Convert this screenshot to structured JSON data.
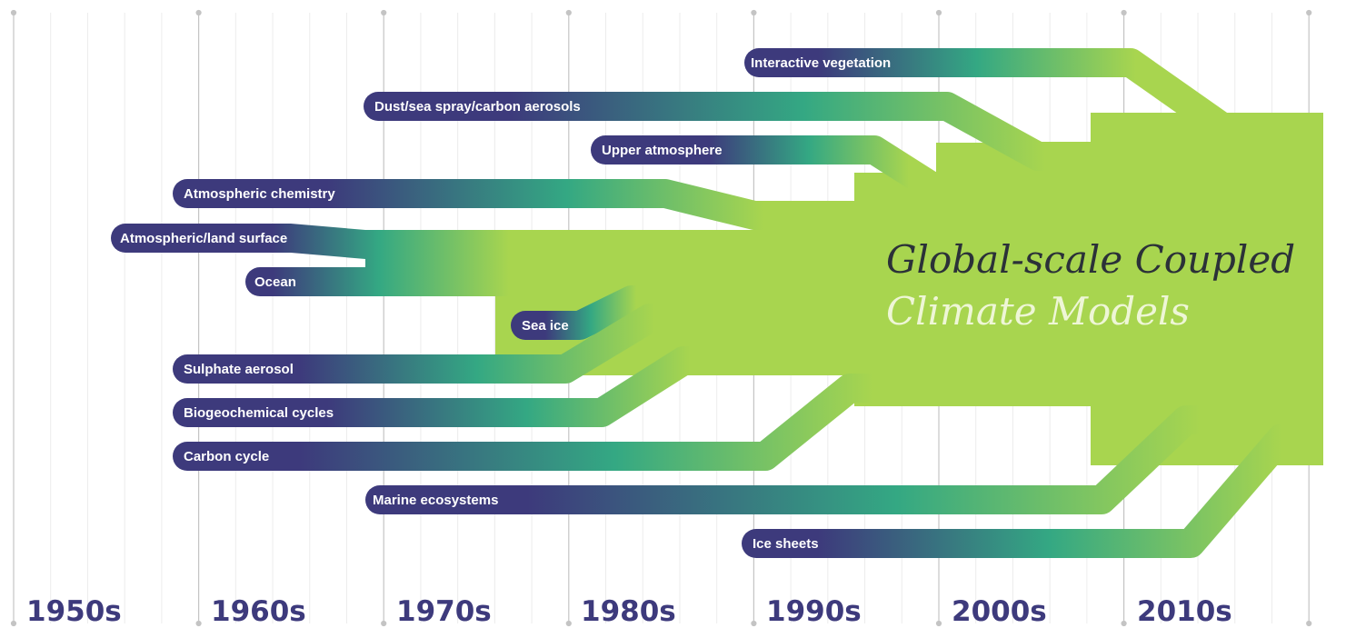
{
  "title": {
    "line1": "Global-scale Coupled",
    "line2": "Climate Models"
  },
  "decades": [
    "1950s",
    "1960s",
    "1970s",
    "1980s",
    "1990s",
    "2000s",
    "2010s"
  ],
  "tracks": [
    {
      "label": "Interactive vegetation",
      "start_decade": 1987
    },
    {
      "label": "Dust/sea spray/carbon aerosols",
      "start_decade": 1967
    },
    {
      "label": "Upper atmosphere",
      "start_decade": 1979
    },
    {
      "label": "Atmospheric chemistry",
      "start_decade": 1956
    },
    {
      "label": "Atmospheric/land surface",
      "start_decade": 1953
    },
    {
      "label": "Ocean",
      "start_decade": 1962
    },
    {
      "label": "Sea ice",
      "start_decade": 1977
    },
    {
      "label": "Sulphate aerosol",
      "start_decade": 1956
    },
    {
      "label": "Biogeochemical cycles",
      "start_decade": 1956
    },
    {
      "label": "Carbon cycle",
      "start_decade": 1956
    },
    {
      "label": "Marine ecosystems",
      "start_decade": 1967
    },
    {
      "label": "Ice sheets",
      "start_decade": 1987
    }
  ],
  "colors": {
    "start": "#3d3a7c",
    "mid": "#34a883",
    "end": "#a8d54f",
    "decade_text": "#3d3a7c",
    "grid_major": "#c4c4c4",
    "grid_minor": "#ececec"
  }
}
